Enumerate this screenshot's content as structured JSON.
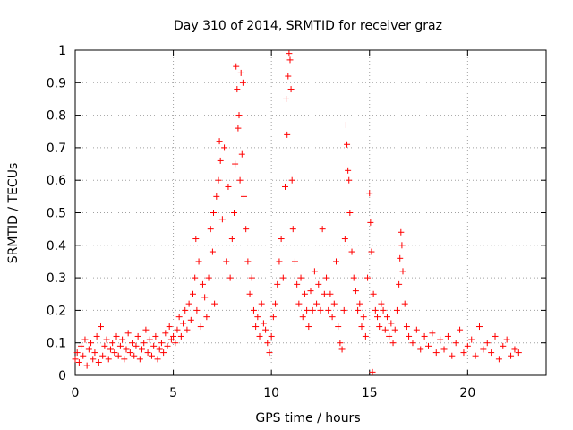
{
  "chart_data": {
    "type": "scatter",
    "title": "Day 310 of 2014, SRMTID for receiver graz",
    "xlabel": "GPS time / hours",
    "ylabel": "SRMTID / TECUs",
    "xlim": [
      0,
      24
    ],
    "ylim": [
      0,
      1
    ],
    "xticks": [
      0,
      5,
      10,
      15,
      20
    ],
    "xtick_labels": [
      "0",
      "5",
      "10",
      "15",
      "20"
    ],
    "yticks": [
      0,
      0.1,
      0.2,
      0.3,
      0.4,
      0.5,
      0.6,
      0.7,
      0.8,
      0.9,
      1
    ],
    "ytick_labels": [
      "0",
      "0.1",
      "0.2",
      "0.3",
      "0.4",
      "0.5",
      "0.6",
      "0.7",
      "0.8",
      "0.9",
      "1"
    ],
    "grid": true,
    "marker": "+",
    "color": "#ff0000",
    "series": [
      {
        "name": "SRMTID",
        "points": [
          [
            0.0,
            0.05
          ],
          [
            0.1,
            0.07
          ],
          [
            0.2,
            0.04
          ],
          [
            0.3,
            0.09
          ],
          [
            0.4,
            0.06
          ],
          [
            0.5,
            0.11
          ],
          [
            0.6,
            0.03
          ],
          [
            0.7,
            0.08
          ],
          [
            0.8,
            0.1
          ],
          [
            0.9,
            0.05
          ],
          [
            1.0,
            0.07
          ],
          [
            1.1,
            0.12
          ],
          [
            1.2,
            0.04
          ],
          [
            1.3,
            0.15
          ],
          [
            1.4,
            0.06
          ],
          [
            1.5,
            0.09
          ],
          [
            1.6,
            0.11
          ],
          [
            1.7,
            0.05
          ],
          [
            1.8,
            0.08
          ],
          [
            1.9,
            0.1
          ],
          [
            2.0,
            0.07
          ],
          [
            2.1,
            0.12
          ],
          [
            2.2,
            0.06
          ],
          [
            2.3,
            0.09
          ],
          [
            2.4,
            0.11
          ],
          [
            2.5,
            0.05
          ],
          [
            2.6,
            0.08
          ],
          [
            2.7,
            0.13
          ],
          [
            2.8,
            0.07
          ],
          [
            2.9,
            0.1
          ],
          [
            3.0,
            0.06
          ],
          [
            3.1,
            0.09
          ],
          [
            3.2,
            0.12
          ],
          [
            3.3,
            0.05
          ],
          [
            3.4,
            0.08
          ],
          [
            3.5,
            0.1
          ],
          [
            3.6,
            0.14
          ],
          [
            3.7,
            0.07
          ],
          [
            3.8,
            0.11
          ],
          [
            3.9,
            0.06
          ],
          [
            4.0,
            0.09
          ],
          [
            4.1,
            0.12
          ],
          [
            4.2,
            0.05
          ],
          [
            4.3,
            0.08
          ],
          [
            4.4,
            0.1
          ],
          [
            4.5,
            0.07
          ],
          [
            4.6,
            0.13
          ],
          [
            4.7,
            0.09
          ],
          [
            4.8,
            0.15
          ],
          [
            4.9,
            0.11
          ],
          [
            5.0,
            0.12
          ],
          [
            5.1,
            0.1
          ],
          [
            5.2,
            0.14
          ],
          [
            5.3,
            0.18
          ],
          [
            5.4,
            0.12
          ],
          [
            5.5,
            0.16
          ],
          [
            5.6,
            0.2
          ],
          [
            5.7,
            0.14
          ],
          [
            5.8,
            0.22
          ],
          [
            5.9,
            0.17
          ],
          [
            6.0,
            0.25
          ],
          [
            6.1,
            0.3
          ],
          [
            6.15,
            0.42
          ],
          [
            6.2,
            0.2
          ],
          [
            6.3,
            0.35
          ],
          [
            6.4,
            0.15
          ],
          [
            6.5,
            0.28
          ],
          [
            6.6,
            0.24
          ],
          [
            6.7,
            0.18
          ],
          [
            6.8,
            0.3
          ],
          [
            6.9,
            0.45
          ],
          [
            7.0,
            0.38
          ],
          [
            7.05,
            0.5
          ],
          [
            7.1,
            0.22
          ],
          [
            7.2,
            0.55
          ],
          [
            7.3,
            0.6
          ],
          [
            7.35,
            0.72
          ],
          [
            7.4,
            0.66
          ],
          [
            7.5,
            0.48
          ],
          [
            7.6,
            0.7
          ],
          [
            7.7,
            0.35
          ],
          [
            7.8,
            0.58
          ],
          [
            7.9,
            0.3
          ],
          [
            8.0,
            0.42
          ],
          [
            8.1,
            0.5
          ],
          [
            8.15,
            0.65
          ],
          [
            8.2,
            0.95
          ],
          [
            8.25,
            0.88
          ],
          [
            8.3,
            0.76
          ],
          [
            8.35,
            0.8
          ],
          [
            8.4,
            0.6
          ],
          [
            8.45,
            0.93
          ],
          [
            8.5,
            0.68
          ],
          [
            8.55,
            0.9
          ],
          [
            8.6,
            0.55
          ],
          [
            8.7,
            0.45
          ],
          [
            8.8,
            0.35
          ],
          [
            8.9,
            0.25
          ],
          [
            9.0,
            0.3
          ],
          [
            9.1,
            0.2
          ],
          [
            9.2,
            0.15
          ],
          [
            9.3,
            0.18
          ],
          [
            9.4,
            0.12
          ],
          [
            9.5,
            0.22
          ],
          [
            9.6,
            0.16
          ],
          [
            9.7,
            0.14
          ],
          [
            9.8,
            0.1
          ],
          [
            9.9,
            0.07
          ],
          [
            10.0,
            0.12
          ],
          [
            10.1,
            0.18
          ],
          [
            10.2,
            0.22
          ],
          [
            10.3,
            0.28
          ],
          [
            10.4,
            0.35
          ],
          [
            10.5,
            0.42
          ],
          [
            10.6,
            0.3
          ],
          [
            10.7,
            0.58
          ],
          [
            10.75,
            0.85
          ],
          [
            10.8,
            0.74
          ],
          [
            10.85,
            0.92
          ],
          [
            10.9,
            0.99
          ],
          [
            10.95,
            0.97
          ],
          [
            11.0,
            0.88
          ],
          [
            11.05,
            0.6
          ],
          [
            11.1,
            0.45
          ],
          [
            11.2,
            0.35
          ],
          [
            11.3,
            0.28
          ],
          [
            11.4,
            0.22
          ],
          [
            11.5,
            0.3
          ],
          [
            11.6,
            0.18
          ],
          [
            11.7,
            0.25
          ],
          [
            11.8,
            0.2
          ],
          [
            11.9,
            0.15
          ],
          [
            12.0,
            0.26
          ],
          [
            12.1,
            0.2
          ],
          [
            12.2,
            0.32
          ],
          [
            12.3,
            0.22
          ],
          [
            12.4,
            0.28
          ],
          [
            12.5,
            0.2
          ],
          [
            12.6,
            0.45
          ],
          [
            12.7,
            0.25
          ],
          [
            12.8,
            0.3
          ],
          [
            12.9,
            0.2
          ],
          [
            13.0,
            0.25
          ],
          [
            13.1,
            0.18
          ],
          [
            13.2,
            0.22
          ],
          [
            13.3,
            0.35
          ],
          [
            13.4,
            0.15
          ],
          [
            13.5,
            0.1
          ],
          [
            13.6,
            0.08
          ],
          [
            13.7,
            0.2
          ],
          [
            13.75,
            0.42
          ],
          [
            13.8,
            0.77
          ],
          [
            13.85,
            0.71
          ],
          [
            13.9,
            0.63
          ],
          [
            13.95,
            0.6
          ],
          [
            14.0,
            0.5
          ],
          [
            14.1,
            0.38
          ],
          [
            14.2,
            0.3
          ],
          [
            14.3,
            0.26
          ],
          [
            14.4,
            0.2
          ],
          [
            14.5,
            0.22
          ],
          [
            14.6,
            0.15
          ],
          [
            14.7,
            0.18
          ],
          [
            14.8,
            0.12
          ],
          [
            14.9,
            0.3
          ],
          [
            15.0,
            0.56
          ],
          [
            15.05,
            0.47
          ],
          [
            15.1,
            0.38
          ],
          [
            15.15,
            0.01
          ],
          [
            15.2,
            0.25
          ],
          [
            15.3,
            0.2
          ],
          [
            15.4,
            0.18
          ],
          [
            15.5,
            0.15
          ],
          [
            15.6,
            0.22
          ],
          [
            15.7,
            0.2
          ],
          [
            15.8,
            0.14
          ],
          [
            15.9,
            0.18
          ],
          [
            16.0,
            0.12
          ],
          [
            16.1,
            0.16
          ],
          [
            16.2,
            0.1
          ],
          [
            16.3,
            0.14
          ],
          [
            16.4,
            0.2
          ],
          [
            16.5,
            0.28
          ],
          [
            16.55,
            0.36
          ],
          [
            16.6,
            0.44
          ],
          [
            16.65,
            0.4
          ],
          [
            16.7,
            0.32
          ],
          [
            16.8,
            0.22
          ],
          [
            16.9,
            0.15
          ],
          [
            17.0,
            0.12
          ],
          [
            17.2,
            0.1
          ],
          [
            17.4,
            0.14
          ],
          [
            17.6,
            0.08
          ],
          [
            17.8,
            0.12
          ],
          [
            18.0,
            0.09
          ],
          [
            18.2,
            0.13
          ],
          [
            18.4,
            0.07
          ],
          [
            18.6,
            0.11
          ],
          [
            18.8,
            0.08
          ],
          [
            19.0,
            0.12
          ],
          [
            19.2,
            0.06
          ],
          [
            19.4,
            0.1
          ],
          [
            19.6,
            0.14
          ],
          [
            19.8,
            0.07
          ],
          [
            20.0,
            0.09
          ],
          [
            20.2,
            0.11
          ],
          [
            20.4,
            0.06
          ],
          [
            20.6,
            0.15
          ],
          [
            20.8,
            0.08
          ],
          [
            21.0,
            0.1
          ],
          [
            21.2,
            0.07
          ],
          [
            21.4,
            0.12
          ],
          [
            21.6,
            0.05
          ],
          [
            21.8,
            0.09
          ],
          [
            22.0,
            0.11
          ],
          [
            22.2,
            0.06
          ],
          [
            22.4,
            0.08
          ],
          [
            22.6,
            0.07
          ]
        ]
      }
    ]
  }
}
